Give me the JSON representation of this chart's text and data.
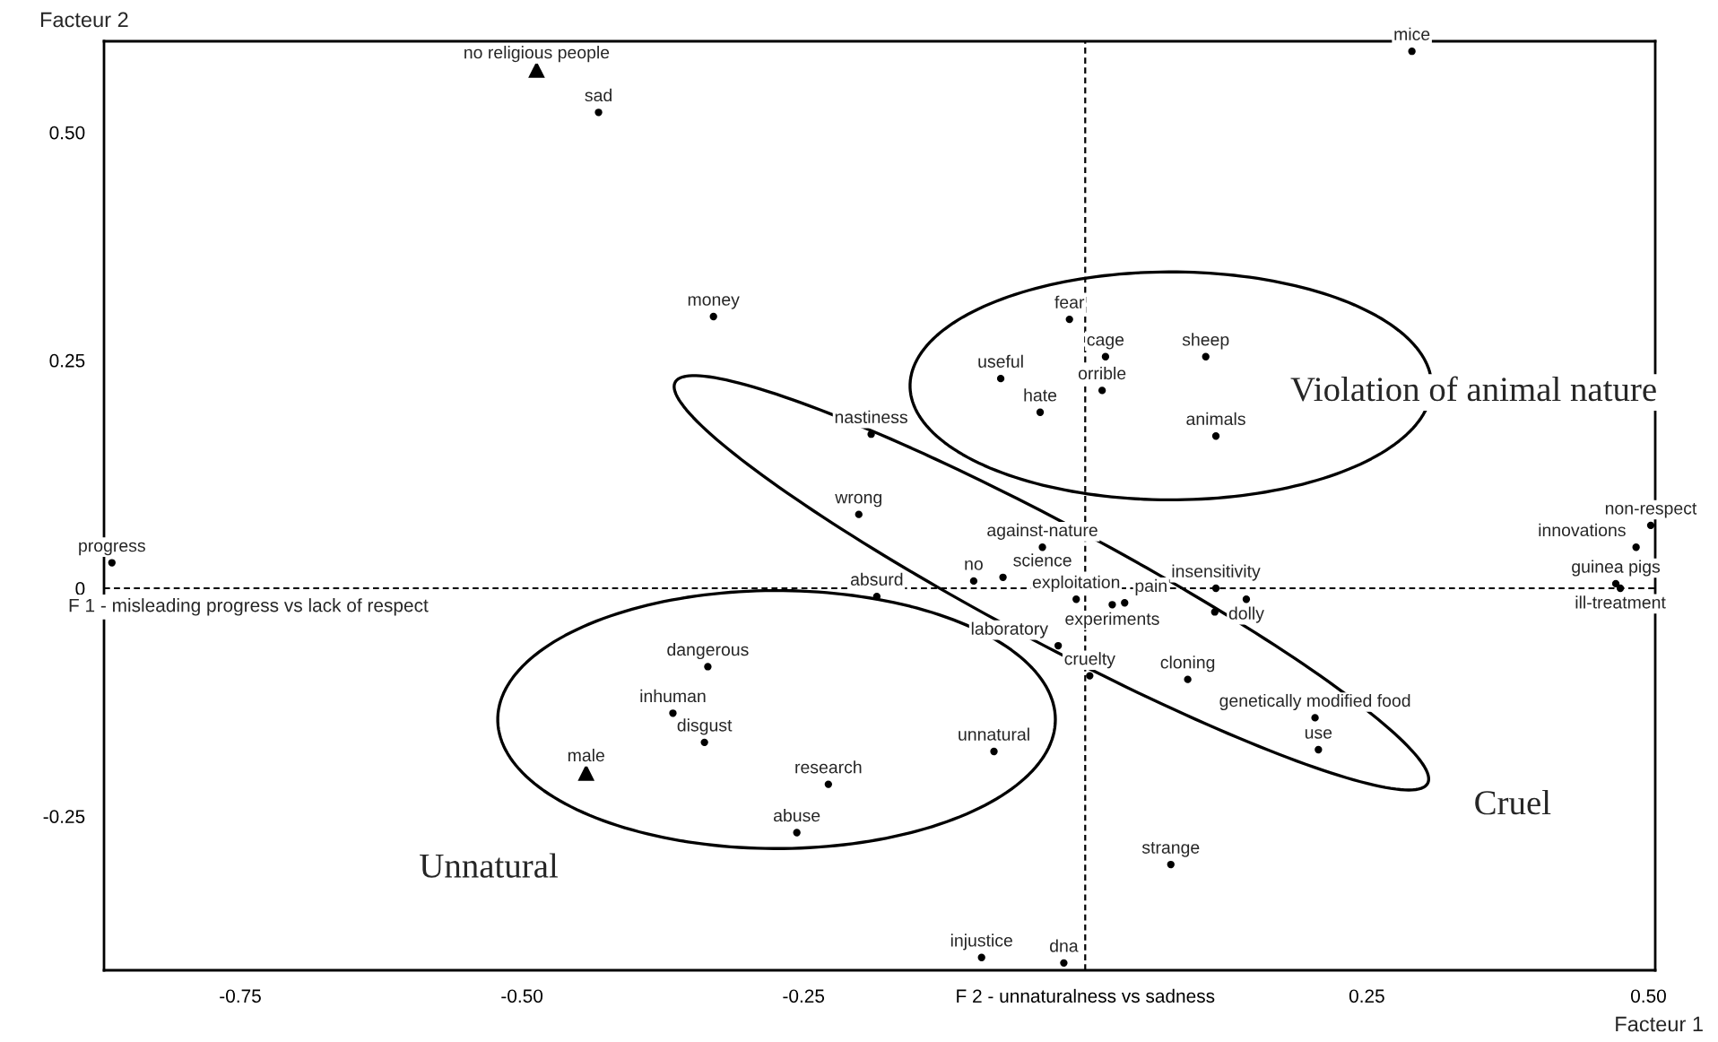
{
  "chart_data": {
    "type": "scatter",
    "xlabel": "Facteur 1",
    "ylabel": "Facteur 2",
    "xlim": [
      -0.871,
      0.506
    ],
    "ylim": [
      -0.419,
      0.6
    ],
    "xticks": [
      {
        "value": -0.75,
        "label": "-0.75"
      },
      {
        "value": -0.5,
        "label": "-0.50"
      },
      {
        "value": -0.25,
        "label": "-0.25"
      },
      {
        "value": 0,
        "label": "F 2 - unnaturalness vs sadness"
      },
      {
        "value": 0.25,
        "label": "0.25"
      },
      {
        "value": 0.5,
        "label": "0.50"
      }
    ],
    "yticks": [
      {
        "value": -0.25,
        "label": "-0.25"
      },
      0,
      {
        "value": 0.25,
        "label": "0.25"
      },
      {
        "value": 0.5,
        "label": "0.50"
      }
    ],
    "grid": false,
    "ref_lines": [
      {
        "axis": "x",
        "value": 0,
        "line_style": "dashed",
        "color": "#000000"
      },
      {
        "axis": "y",
        "value": 0,
        "label": "F 1 - misleading progress vs lack of respect",
        "line_style": "dashed",
        "color": "#000000"
      }
    ],
    "series": [
      {
        "color": "#000000",
        "marker": "circle",
        "x": [
          -0.432,
          -0.33,
          0.29,
          -0.014,
          0.018,
          0.107,
          -0.075,
          0.015,
          -0.04,
          0.116,
          -0.19,
          -0.201,
          -0.864,
          0.502,
          0.489,
          0.471,
          0.475,
          -0.038,
          -0.099,
          -0.073,
          0.116,
          -0.008,
          0.024,
          0.035,
          -0.185,
          0.143,
          0.115,
          -0.024,
          0.004,
          0.091,
          0.204,
          0.207,
          -0.081,
          0.076,
          -0.092,
          -0.019,
          -0.335,
          -0.366,
          -0.338,
          -0.228,
          -0.256
        ],
        "values": [
          0.522,
          0.298,
          0.589,
          0.295,
          0.254,
          0.254,
          0.23,
          0.217,
          0.193,
          0.167,
          0.169,
          0.081,
          0.028,
          0.069,
          0.045,
          0.005,
          0.0,
          0.045,
          0.008,
          0.012,
          0.0,
          -0.012,
          -0.018,
          -0.016,
          -0.009,
          -0.012,
          -0.026,
          -0.063,
          -0.096,
          -0.1,
          -0.142,
          -0.177,
          -0.179,
          -0.303,
          -0.405,
          -0.411,
          -0.086,
          -0.137,
          -0.169,
          -0.215,
          -0.268
        ],
        "value_labels": [
          "sad",
          "money",
          "mice",
          "fear",
          "cage",
          "sheep",
          "useful",
          "orrible",
          "hate",
          "animals",
          "nastiness",
          "wrong",
          "progress",
          "non-respect",
          "innovations",
          "guinea pigs",
          "ill-treatment",
          "against-nature",
          "no",
          "science",
          "insensitivity",
          "exploitation",
          "experiments",
          "pain",
          "absurd",
          "dolly",
          null,
          "laboratory",
          "cruelty",
          "cloning",
          "genetically modified food",
          "use",
          "unnatural",
          "strange",
          "injustice",
          "dna",
          "dangerous",
          "inhuman",
          "disgust",
          "research",
          "abuse"
        ]
      },
      {
        "color": "#000000",
        "marker": "triangle",
        "x": [
          -0.487,
          -0.443
        ],
        "values": [
          0.569,
          -0.202
        ],
        "value_labels": [
          "no religious people",
          "male"
        ]
      }
    ],
    "annotations": [
      "Violation of animal nature",
      "Cruel",
      "Unnatural"
    ]
  }
}
